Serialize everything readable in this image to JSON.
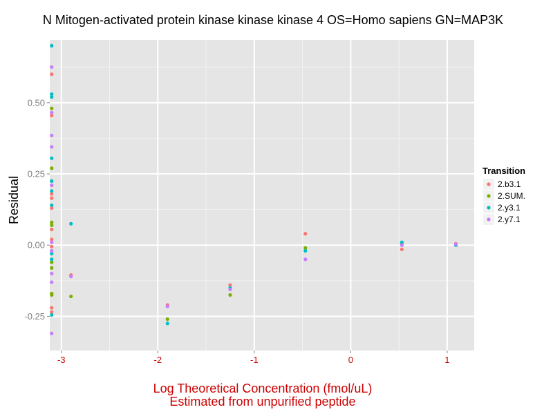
{
  "chart_data": {
    "type": "scatter",
    "title": "N Mitogen-activated protein kinase kinase kinase 4 OS=Homo sapiens GN=MAP3K",
    "xlabel": [
      "Log Theoretical Concentration (fmol/uL)",
      "Estimated from unpurified peptide"
    ],
    "ylabel": "Residual",
    "xlim": [
      -3.12,
      1.28
    ],
    "ylim": [
      -0.37,
      0.72
    ],
    "x_ticks": [
      -3,
      -2,
      -1,
      0,
      1
    ],
    "x_tick_labels": [
      "-3",
      "-2",
      "-1",
      "0",
      "1"
    ],
    "y_ticks": [
      -0.25,
      0.0,
      0.25,
      0.5
    ],
    "y_tick_labels": [
      "-0.25",
      "0.00",
      "0.25",
      "0.50"
    ],
    "grid": true,
    "legend_position": "right",
    "legend_title": "Transition",
    "colors": {
      "panel": "#e5e5e5",
      "grid_major": "#ffffff",
      "grid_minor": "#f2f2f2",
      "x_text": "#cc0000"
    },
    "series": [
      {
        "name": "2.b3.1",
        "color": "#f8766d",
        "points": [
          [
            -3.1,
            0.6
          ],
          [
            -3.1,
            0.455
          ],
          [
            -3.1,
            0.18
          ],
          [
            -3.1,
            0.165
          ],
          [
            -3.1,
            0.13
          ],
          [
            -3.1,
            0.055
          ],
          [
            -3.1,
            0.02
          ],
          [
            -3.1,
            -0.005
          ],
          [
            -3.1,
            -0.22
          ],
          [
            -3.1,
            -0.235
          ],
          [
            -2.9,
            -0.105
          ],
          [
            -1.9,
            -0.21
          ],
          [
            -1.25,
            -0.14
          ],
          [
            -0.47,
            0.04
          ],
          [
            0.53,
            -0.015
          ],
          [
            1.09,
            0.005
          ]
        ]
      },
      {
        "name": "2.SUM.",
        "color": "#7cae00",
        "points": [
          [
            -3.1,
            0.48
          ],
          [
            -3.1,
            0.27
          ],
          [
            -3.1,
            0.08
          ],
          [
            -3.1,
            0.07
          ],
          [
            -3.1,
            -0.06
          ],
          [
            -3.1,
            -0.08
          ],
          [
            -3.1,
            -0.17
          ],
          [
            -3.1,
            -0.175
          ],
          [
            -2.9,
            -0.18
          ],
          [
            -1.9,
            -0.26
          ],
          [
            -1.25,
            -0.175
          ],
          [
            -0.47,
            -0.01
          ],
          [
            0.53,
            0.005
          ],
          [
            1.09,
            0.002
          ]
        ]
      },
      {
        "name": "2.y3.1",
        "color": "#00bfc4",
        "points": [
          [
            -3.1,
            0.7
          ],
          [
            -3.1,
            0.53
          ],
          [
            -3.1,
            0.52
          ],
          [
            -3.1,
            0.305
          ],
          [
            -3.1,
            0.225
          ],
          [
            -3.1,
            0.19
          ],
          [
            -3.1,
            0.14
          ],
          [
            -3.1,
            -0.03
          ],
          [
            -3.1,
            -0.05
          ],
          [
            -3.1,
            -0.245
          ],
          [
            -2.9,
            0.075
          ],
          [
            -1.9,
            -0.275
          ],
          [
            -1.25,
            -0.15
          ],
          [
            -0.47,
            -0.02
          ],
          [
            0.53,
            0.01
          ],
          [
            1.09,
            0.0
          ]
        ]
      },
      {
        "name": "2.y7.1",
        "color": "#c77cff",
        "points": [
          [
            -3.1,
            0.625
          ],
          [
            -3.1,
            0.465
          ],
          [
            -3.1,
            0.385
          ],
          [
            -3.1,
            0.345
          ],
          [
            -3.1,
            0.21
          ],
          [
            -3.1,
            0.01
          ],
          [
            -3.1,
            -0.02
          ],
          [
            -3.1,
            -0.1
          ],
          [
            -3.1,
            -0.13
          ],
          [
            -3.1,
            -0.31
          ],
          [
            -2.9,
            -0.11
          ],
          [
            -1.9,
            -0.215
          ],
          [
            -1.25,
            -0.155
          ],
          [
            -0.47,
            -0.05
          ],
          [
            0.53,
            0.0
          ],
          [
            1.09,
            0.003
          ]
        ]
      }
    ]
  }
}
